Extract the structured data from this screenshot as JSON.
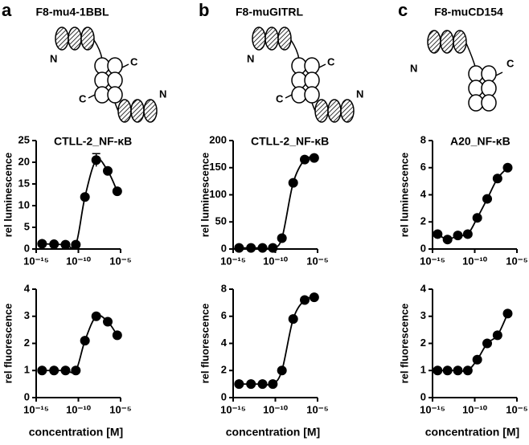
{
  "panels": [
    {
      "letter": "a",
      "title": "F8-mu4-1BBL",
      "diagram_labels": [
        "N",
        "C",
        "C",
        "N"
      ]
    },
    {
      "letter": "b",
      "title": "F8-muGITRL",
      "diagram_labels": [
        "N",
        "C",
        "C",
        "N"
      ]
    },
    {
      "letter": "c",
      "title": "F8-muCD154",
      "diagram_labels": [
        "N",
        "C"
      ]
    }
  ],
  "chart_data": [
    {
      "type": "scatter",
      "title": "CTLL-2_NF-κB",
      "ylabel": "rel luminescence",
      "color": "#000000",
      "log_x": true,
      "x": [
        5e-15,
        1.3e-13,
        3e-12,
        5e-11,
        6e-10,
        1.3e-08,
        3e-07,
        4e-06
      ],
      "values": [
        1.2,
        1.1,
        1.0,
        1.0,
        12,
        20.5,
        18,
        13.3
      ],
      "errors": [
        null,
        null,
        null,
        null,
        null,
        1.5,
        null,
        null
      ],
      "xlim": [
        1e-15,
        1e-05
      ],
      "xticks": [
        {
          "value": 1e-15,
          "label": "10⁻¹⁵"
        },
        {
          "value": 1e-10,
          "label": "10⁻¹⁰"
        },
        {
          "value": 1e-05,
          "label": "10⁻⁵"
        }
      ],
      "ylim": [
        0,
        25
      ],
      "yticks": [
        0,
        5,
        10,
        15,
        20,
        25
      ]
    },
    {
      "type": "scatter",
      "ylabel": "rel fluorescence",
      "xlabel": "concentration [M]",
      "color": "#000000",
      "log_x": true,
      "x": [
        5e-15,
        1.3e-13,
        3e-12,
        5e-11,
        6e-10,
        1.3e-08,
        3e-07,
        4e-06
      ],
      "values": [
        1.0,
        1.0,
        1.0,
        1.0,
        2.1,
        3.0,
        2.8,
        2.3
      ],
      "xlim": [
        1e-15,
        1e-05
      ],
      "xticks": [
        {
          "value": 1e-15,
          "label": "10⁻¹⁵"
        },
        {
          "value": 1e-10,
          "label": "10⁻¹⁰"
        },
        {
          "value": 1e-05,
          "label": "10⁻⁵"
        }
      ],
      "ylim": [
        0,
        4
      ],
      "yticks": [
        0,
        1,
        2,
        3,
        4
      ]
    },
    {
      "type": "scatter",
      "title": "CTLL-2_NF-κB",
      "ylabel": "rel luminescence",
      "color": "#000000",
      "log_x": true,
      "x": [
        5e-15,
        1.3e-13,
        3e-12,
        5e-11,
        6e-10,
        1.3e-08,
        3e-07,
        4e-06
      ],
      "values": [
        2,
        2,
        2,
        2,
        20,
        122,
        165,
        168
      ],
      "xlim": [
        1e-15,
        1e-05
      ],
      "xticks": [
        {
          "value": 1e-15,
          "label": "10⁻¹⁵"
        },
        {
          "value": 1e-10,
          "label": "10⁻¹⁰"
        },
        {
          "value": 1e-05,
          "label": "10⁻⁵"
        }
      ],
      "ylim": [
        0,
        200
      ],
      "yticks": [
        0,
        50,
        100,
        150,
        200
      ]
    },
    {
      "type": "scatter",
      "ylabel": "rel fluorescence",
      "xlabel": "concentration [M]",
      "color": "#000000",
      "log_x": true,
      "x": [
        5e-15,
        1.3e-13,
        3e-12,
        5e-11,
        6e-10,
        1.3e-08,
        3e-07,
        4e-06
      ],
      "values": [
        1.0,
        1.0,
        1.0,
        1.0,
        2.0,
        5.8,
        7.2,
        7.4
      ],
      "xlim": [
        1e-15,
        1e-05
      ],
      "xticks": [
        {
          "value": 1e-15,
          "label": "10⁻¹⁵"
        },
        {
          "value": 1e-10,
          "label": "10⁻¹⁰"
        },
        {
          "value": 1e-05,
          "label": "10⁻⁵"
        }
      ],
      "ylim": [
        0,
        8
      ],
      "yticks": [
        0,
        2,
        4,
        6,
        8
      ]
    },
    {
      "type": "scatter",
      "title": "A20_NF-κB",
      "ylabel": "rel luminescence",
      "color": "#000000",
      "log_x": true,
      "x": [
        4e-15,
        6e-14,
        1e-12,
        1.5e-11,
        2e-10,
        3e-09,
        5e-08,
        8e-07
      ],
      "values": [
        1.1,
        0.7,
        1.0,
        1.1,
        2.3,
        3.7,
        5.2,
        6.0
      ],
      "xlim": [
        1e-15,
        1e-05
      ],
      "xticks": [
        {
          "value": 1e-15,
          "label": "10⁻¹⁵"
        },
        {
          "value": 1e-10,
          "label": "10⁻¹⁰"
        },
        {
          "value": 1e-05,
          "label": "10⁻⁵"
        }
      ],
      "ylim": [
        0,
        8
      ],
      "yticks": [
        0,
        2,
        4,
        6,
        8
      ]
    },
    {
      "type": "scatter",
      "ylabel": "rel fluorescence",
      "xlabel": "concentration [M]",
      "color": "#000000",
      "log_x": true,
      "x": [
        4e-15,
        6e-14,
        1e-12,
        1.5e-11,
        2e-10,
        3e-09,
        5e-08,
        8e-07
      ],
      "values": [
        1.0,
        1.0,
        1.0,
        1.0,
        1.4,
        2.0,
        2.3,
        3.1
      ],
      "xlim": [
        1e-15,
        1e-05
      ],
      "xticks": [
        {
          "value": 1e-15,
          "label": "10⁻¹⁵"
        },
        {
          "value": 1e-10,
          "label": "10⁻¹⁰"
        },
        {
          "value": 1e-05,
          "label": "10⁻⁵"
        }
      ],
      "ylim": [
        0,
        4
      ],
      "yticks": [
        0,
        1,
        2,
        3,
        4
      ]
    }
  ]
}
